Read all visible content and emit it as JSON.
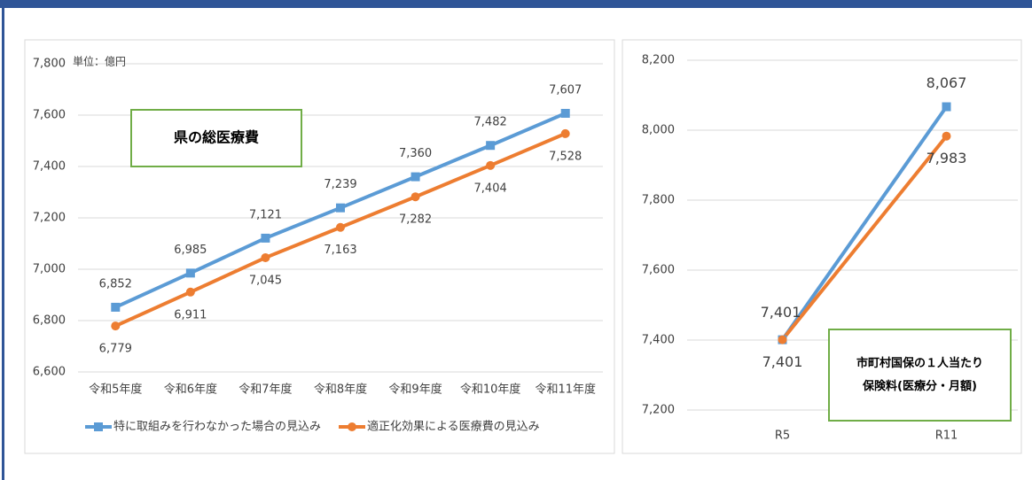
{
  "chart_data": [
    {
      "type": "line",
      "title": "県の総医療費",
      "unit_label": "単位：億円",
      "categories": [
        "令和5年度",
        "令和6年度",
        "令和7年度",
        "令和8年度",
        "令和9年度",
        "令和10年度",
        "令和11年度"
      ],
      "series": [
        {
          "name": "特に取組みを行わなかった場合の見込み",
          "color": "#5b9bd5",
          "marker": "square",
          "values": [
            6852,
            6985,
            7121,
            7239,
            7360,
            7482,
            7607
          ],
          "value_labels": [
            "6,852",
            "6,985",
            "7,121",
            "7,239",
            "7,360",
            "7,482",
            "7,607"
          ]
        },
        {
          "name": "適正化効果による医療費の見込み",
          "color": "#ed7d31",
          "marker": "circle",
          "values": [
            6779,
            6911,
            7045,
            7163,
            7282,
            7404,
            7528
          ],
          "value_labels": [
            "6,779",
            "6,911",
            "7,045",
            "7,163",
            "7,282",
            "7,404",
            "7,528"
          ]
        }
      ],
      "ylim": [
        6600,
        7800
      ],
      "yticks": [
        {
          "value": 6600,
          "label": "6,600"
        },
        {
          "value": 6800,
          "label": "6,800"
        },
        {
          "value": 7000,
          "label": "7,000"
        },
        {
          "value": 7200,
          "label": "7,200"
        },
        {
          "value": 7400,
          "label": "7,400"
        },
        {
          "value": 7600,
          "label": "7,600"
        },
        {
          "value": 7800,
          "label": "7,800"
        }
      ],
      "grid": true,
      "legend": "bottom"
    },
    {
      "type": "line",
      "title": [
        "市町村国保の１人当たり",
        "保険料(医療分・月額)"
      ],
      "categories": [
        "R5",
        "R11"
      ],
      "series": [
        {
          "color": "#5b9bd5",
          "marker": "square",
          "values": [
            7401,
            8067
          ],
          "value_labels": [
            "7,401",
            "8,067"
          ]
        },
        {
          "color": "#ed7d31",
          "marker": "circle",
          "values": [
            7401,
            7983
          ],
          "value_labels": [
            "7,401",
            "7,983"
          ]
        }
      ],
      "ylim": [
        7200,
        8200
      ],
      "yticks": [
        {
          "value": 7200,
          "label": "7,200"
        },
        {
          "value": 7400,
          "label": "7,400"
        },
        {
          "value": 7600,
          "label": "7,600"
        },
        {
          "value": 7800,
          "label": "7,800"
        },
        {
          "value": 8000,
          "label": "8,000"
        },
        {
          "value": 8200,
          "label": "8,200"
        }
      ],
      "grid": true
    }
  ]
}
